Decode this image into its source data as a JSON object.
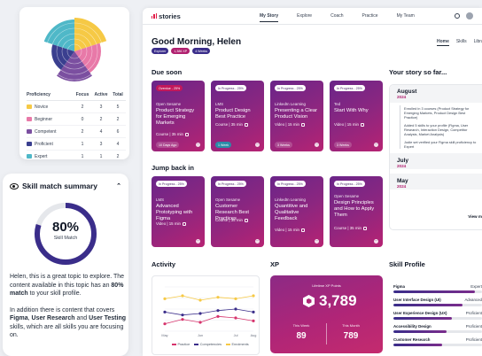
{
  "proficiency": {
    "headers": [
      "Proficiency",
      "Focus",
      "Active",
      "Total"
    ],
    "rows": [
      {
        "label": "Novice",
        "color": "#f6c945",
        "focus": "2",
        "active": "3",
        "total": "5"
      },
      {
        "label": "Beginner",
        "color": "#e879a8",
        "focus": "0",
        "active": "2",
        "total": "2"
      },
      {
        "label": "Competent",
        "color": "#7b4fa0",
        "focus": "2",
        "active": "4",
        "total": "6"
      },
      {
        "label": "Proficient",
        "color": "#3a3f8f",
        "focus": "1",
        "active": "3",
        "total": "4"
      },
      {
        "label": "Expert",
        "color": "#4fb8c8",
        "focus": "1",
        "active": "1",
        "total": "2"
      }
    ]
  },
  "skill_match": {
    "title": "Skill match summary",
    "percent": "80%",
    "value": 0.8,
    "label": "Skill Match",
    "p1_a": "Helen, this is a great topic to explore. The content available in this topic has an ",
    "p1_b": "80% match",
    "p1_c": " to your skill profile.",
    "p2_a": "In addition there is content that covers ",
    "p2_b": "Figma",
    "p2_c": ", ",
    "p2_d": "User Research",
    "p2_e": " and ",
    "p2_f": "User Testing",
    "p2_g": " skills, which are all skills you are focusing on."
  },
  "nav": {
    "brand": "stories",
    "items": [
      "My Story",
      "Explore",
      "Coach",
      "Practice",
      "My Team"
    ]
  },
  "greeting": "Good Morning, Helen",
  "badges": [
    "Explorer",
    "1,386 XP",
    "4 Weeks"
  ],
  "subtabs": [
    "Home",
    "Skills",
    "Library"
  ],
  "due_soon": {
    "title": "Due soon",
    "cards": [
      {
        "tag": "Overdue - 25%",
        "provider": "Open Sesame",
        "title": "Product Strategy for Emerging Markets",
        "meta": "Course | 35 min",
        "date": "10 Days Ago"
      },
      {
        "tag": "In Progress - 25%",
        "provider": "LMS",
        "title": "Product Design Best Practice",
        "meta": "Course | 35 min",
        "date": "1 Week"
      },
      {
        "tag": "In Progress - 25%",
        "provider": "LinkedIn Learning",
        "title": "Presenting a Clear Product Vision",
        "meta": "Video | 15 min",
        "date": "3 Weeks"
      },
      {
        "tag": "In Progress - 25%",
        "provider": "Ted",
        "title": "Start With Why",
        "meta": "Video | 15 min",
        "date": "3 Weeks"
      }
    ]
  },
  "jump_back": {
    "title": "Jump back in",
    "cards": [
      {
        "tag": "In Progress - 25%",
        "provider": "LMS",
        "title": "Advanced Prototyping with Figma",
        "meta": "Video | 15 min"
      },
      {
        "tag": "In Progress - 25%",
        "provider": "Open Sesame",
        "title": "Customer Research Best Practices",
        "meta": "Course | 35 min"
      },
      {
        "tag": "In Progress - 25%",
        "provider": "LinkedIn Learning",
        "title": "Quantitive and Qualitative Feedback",
        "meta": "Video | 15 min"
      },
      {
        "tag": "In Progress - 25%",
        "provider": "Open Sesame",
        "title": "Design Principles and How to Apply Them",
        "meta": "Course | 35 min"
      }
    ]
  },
  "story": {
    "title": "Your story so far...",
    "month1": "August",
    "year1": "2024",
    "entries": [
      "Enrolled in 3 courses (Product Strategy for Emerging Markets, Product Design Best Practice)",
      "Added 5 skills to your profile (Figma, User Research, Interaction Design, Competitor Analysis, Market Analysis)",
      "Jodie set verified your Figma skill proficiency to Expert"
    ],
    "month2": "July",
    "year2": "2024",
    "month3": "May",
    "year3": "2024",
    "view_more": "View m"
  },
  "activity": {
    "title": "Activity",
    "legend": [
      "Practice",
      "Competencies",
      "Enrolments"
    ]
  },
  "chart_data": {
    "type": "line",
    "categories": [
      "May",
      "Jun",
      "Jul",
      "Aug"
    ],
    "ylim": [
      0,
      30
    ],
    "series": [
      {
        "name": "Practice",
        "color": "#d6336c",
        "values": [
          5,
          8,
          6,
          10,
          9,
          7
        ]
      },
      {
        "name": "Competencies",
        "color": "#3a2d8a",
        "values": [
          13,
          11,
          12,
          14,
          15,
          13
        ]
      },
      {
        "name": "Enrolments",
        "color": "#f6c945",
        "values": [
          22,
          24,
          21,
          23,
          22,
          24
        ]
      }
    ],
    "x": [
      "May",
      "",
      "Jun",
      "",
      "Jul",
      "Aug"
    ]
  },
  "xp": {
    "title": "XP",
    "lifetime_label": "Lifetime XP Points",
    "lifetime": "3,789",
    "week_label": "This Week",
    "week": "89",
    "month_label": "This Month",
    "month": "789"
  },
  "skill_profile": {
    "title": "Skill Profile",
    "items": [
      {
        "name": "Figma",
        "level": "Expert",
        "value": 0.92
      },
      {
        "name": "User Interface Design (UI)",
        "level": "Advanced",
        "value": 0.78
      },
      {
        "name": "User Experience Design (UX)",
        "level": "Proficient",
        "value": 0.66
      },
      {
        "name": "Accessibility Design",
        "level": "Proficient",
        "value": 0.6
      },
      {
        "name": "Customer Research",
        "level": "Proficient",
        "value": 0.55
      }
    ]
  }
}
